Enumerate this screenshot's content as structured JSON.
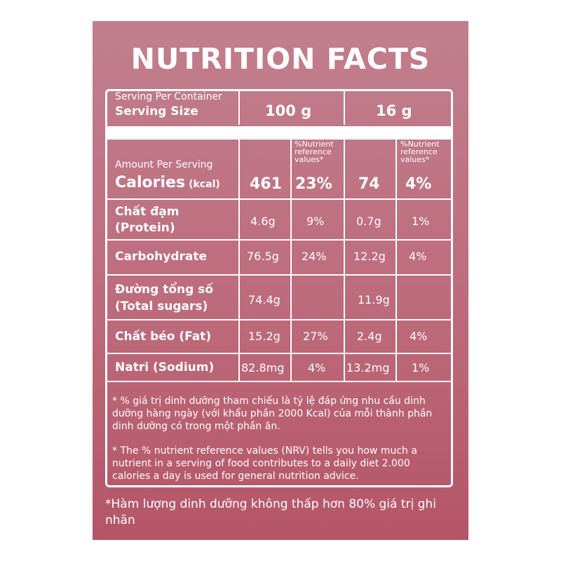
{
  "title": "NUTRITION FACTS",
  "header": {
    "serving_per_container": "Serving Per Container",
    "serving_size_label": "Serving Size",
    "col1_size": "100 g",
    "col2_size": "16 g",
    "amount_per_serving": "Amount Per Serving",
    "nrv_header": "%Nutrient reference values*"
  },
  "calories": {
    "label": "Calories",
    "unit": "(kcal)",
    "v100": "461",
    "p100": "23%",
    "v16": "74",
    "p16": "4%"
  },
  "rows": [
    {
      "label_line1": "Chất đạm",
      "label_line2": "(Protein)",
      "v100": "4.6g",
      "p100": "9%",
      "v16": "0.7g",
      "p16": "1%"
    },
    {
      "label_line1": "Carbohydrate",
      "label_line2": "",
      "v100": "76.5g",
      "p100": "24%",
      "v16": "12.2g",
      "p16": "4%"
    },
    {
      "label_line1": "Đường tổng số",
      "label_line2": "(Total sugars)",
      "v100": "74.4g",
      "p100": "",
      "v16": "11.9g",
      "p16": ""
    },
    {
      "label_line1": "Chất béo (Fat)",
      "label_line2": "",
      "v100": "15.2g",
      "p100": "27%",
      "v16": "2.4g",
      "p16": "4%"
    },
    {
      "label_line1": "Natri (Sodium)",
      "label_line2": "",
      "v100": "82.8mg",
      "p100": "4%",
      "v16": "13.2mg",
      "p16": "1%"
    }
  ],
  "notes": {
    "vn": "* % giá trị dinh dưỡng tham chiếu là tỷ lệ đáp ứng nhu cầu dinh dưỡng hàng ngày (với khẩu phần 2000 Kcal) của mỗi thành phần dinh dưỡng có trong một phần ăn.",
    "en": "* The % nutrient reference values (NRV) tells you how much a nutrient in a serving of food contributes to a daily diet 2.000 calories a day is used for general nutrition advice."
  },
  "footer": "*Hàm lượng dinh dưỡng không thấp hơn 80% giá trị ghi nhãn"
}
